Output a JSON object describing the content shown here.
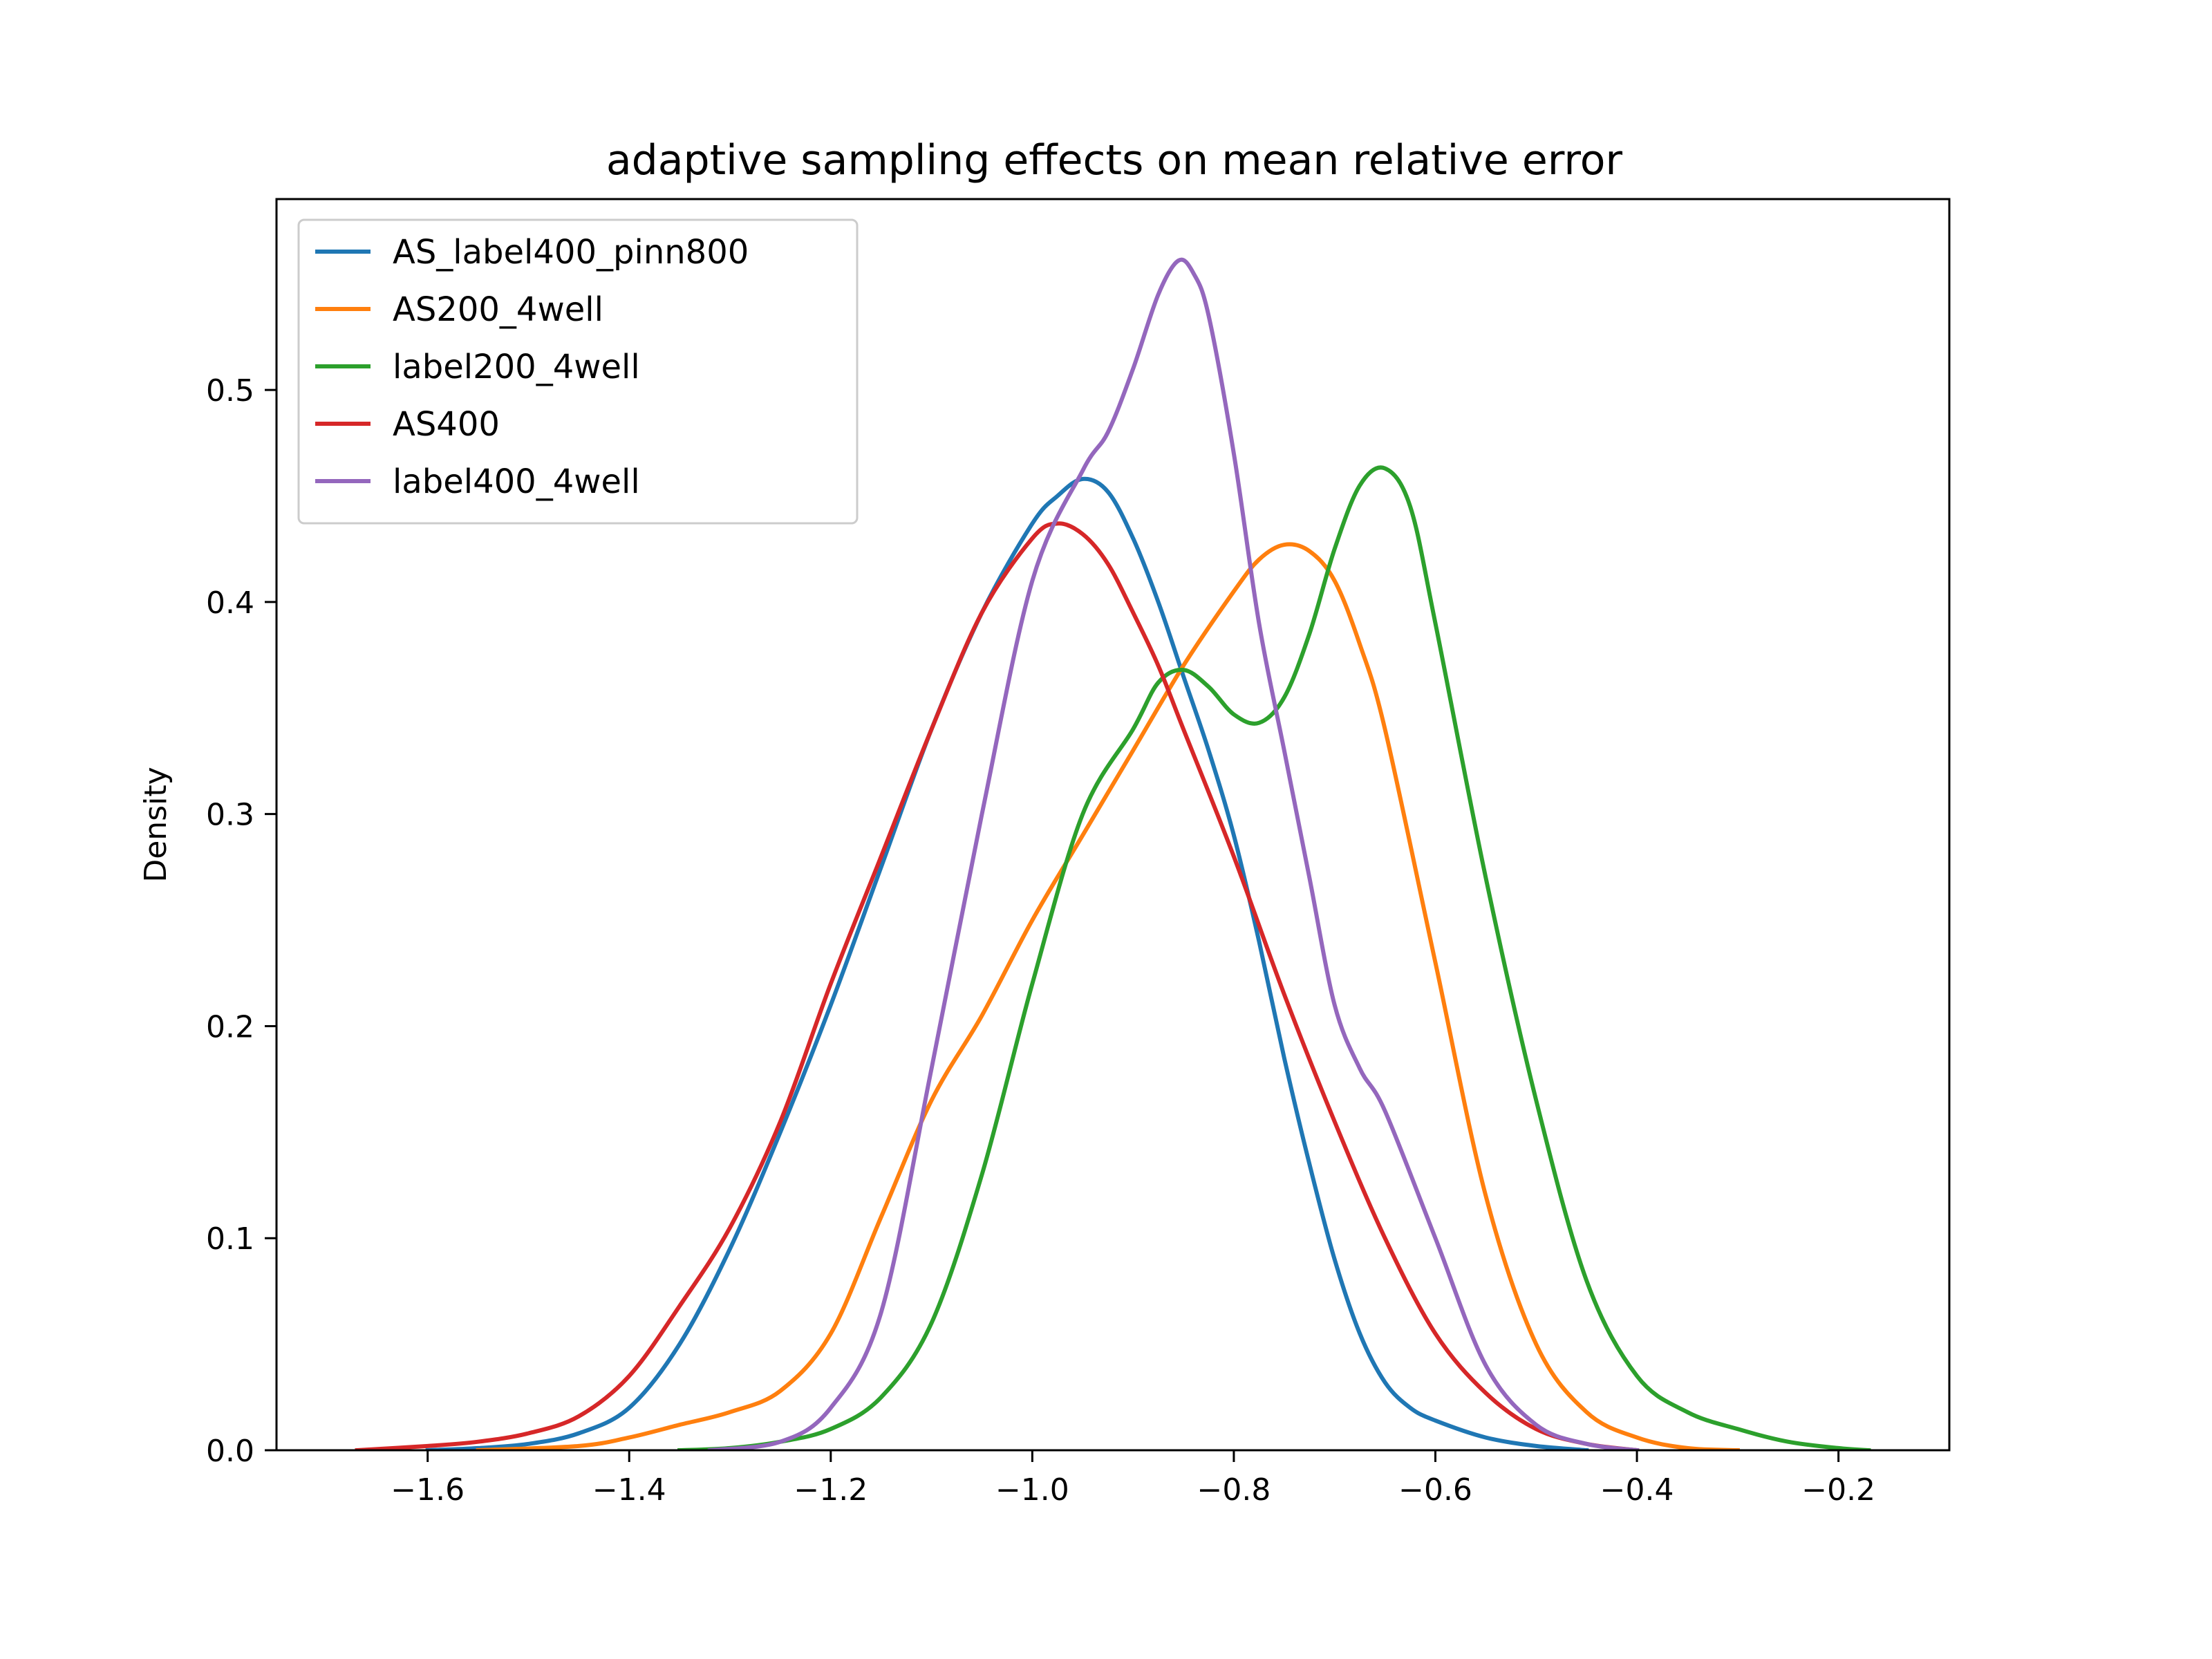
{
  "chart_data": {
    "type": "line",
    "title": "adaptive sampling effects on mean relative error",
    "xlabel": "",
    "ylabel": "Density",
    "xlim": [
      -1.75,
      -0.09
    ],
    "ylim": [
      0,
      0.59
    ],
    "x_ticks": [
      -1.6,
      -1.4,
      -1.2,
      -1.0,
      -0.8,
      -0.6,
      -0.4,
      -0.2
    ],
    "x_tick_labels": [
      "−1.6",
      "−1.4",
      "−1.2",
      "−1.0",
      "−0.8",
      "−0.6",
      "−0.4",
      "−0.2"
    ],
    "y_ticks": [
      0.0,
      0.1,
      0.2,
      0.3,
      0.4,
      0.5
    ],
    "y_tick_labels": [
      "0.0",
      "0.1",
      "0.2",
      "0.3",
      "0.4",
      "0.5"
    ],
    "grid": false,
    "legend_position": "upper-left",
    "series": [
      {
        "name": "AS_label400_pinn800",
        "color": "#1f77b4",
        "points": [
          [
            -1.6,
            0.0
          ],
          [
            -1.55,
            0.001
          ],
          [
            -1.5,
            0.003
          ],
          [
            -1.45,
            0.008
          ],
          [
            -1.4,
            0.02
          ],
          [
            -1.35,
            0.05
          ],
          [
            -1.3,
            0.095
          ],
          [
            -1.25,
            0.15
          ],
          [
            -1.2,
            0.21
          ],
          [
            -1.15,
            0.275
          ],
          [
            -1.1,
            0.34
          ],
          [
            -1.05,
            0.395
          ],
          [
            -1.0,
            0.437
          ],
          [
            -0.975,
            0.45
          ],
          [
            -0.95,
            0.458
          ],
          [
            -0.925,
            0.452
          ],
          [
            -0.9,
            0.43
          ],
          [
            -0.875,
            0.4
          ],
          [
            -0.85,
            0.365
          ],
          [
            -0.825,
            0.33
          ],
          [
            -0.8,
            0.29
          ],
          [
            -0.775,
            0.24
          ],
          [
            -0.75,
            0.185
          ],
          [
            -0.725,
            0.135
          ],
          [
            -0.7,
            0.09
          ],
          [
            -0.675,
            0.055
          ],
          [
            -0.65,
            0.032
          ],
          [
            -0.625,
            0.02
          ],
          [
            -0.6,
            0.014
          ],
          [
            -0.55,
            0.006
          ],
          [
            -0.5,
            0.002
          ],
          [
            -0.45,
            0.0
          ]
        ]
      },
      {
        "name": "AS200_4well",
        "color": "#ff7f0e",
        "points": [
          [
            -1.55,
            0.0
          ],
          [
            -1.45,
            0.002
          ],
          [
            -1.4,
            0.006
          ],
          [
            -1.35,
            0.012
          ],
          [
            -1.3,
            0.018
          ],
          [
            -1.25,
            0.028
          ],
          [
            -1.2,
            0.055
          ],
          [
            -1.15,
            0.11
          ],
          [
            -1.1,
            0.165
          ],
          [
            -1.05,
            0.205
          ],
          [
            -1.0,
            0.25
          ],
          [
            -0.95,
            0.29
          ],
          [
            -0.9,
            0.33
          ],
          [
            -0.85,
            0.37
          ],
          [
            -0.8,
            0.405
          ],
          [
            -0.775,
            0.42
          ],
          [
            -0.75,
            0.427
          ],
          [
            -0.725,
            0.424
          ],
          [
            -0.7,
            0.41
          ],
          [
            -0.675,
            0.38
          ],
          [
            -0.65,
            0.34
          ],
          [
            -0.6,
            0.23
          ],
          [
            -0.55,
            0.12
          ],
          [
            -0.5,
            0.05
          ],
          [
            -0.45,
            0.018
          ],
          [
            -0.4,
            0.006
          ],
          [
            -0.35,
            0.001
          ],
          [
            -0.3,
            0.0
          ]
        ]
      },
      {
        "name": "label200_4well",
        "color": "#2ca02c",
        "points": [
          [
            -1.35,
            0.0
          ],
          [
            -1.3,
            0.001
          ],
          [
            -1.25,
            0.004
          ],
          [
            -1.2,
            0.01
          ],
          [
            -1.15,
            0.025
          ],
          [
            -1.1,
            0.06
          ],
          [
            -1.05,
            0.13
          ],
          [
            -1.0,
            0.22
          ],
          [
            -0.95,
            0.3
          ],
          [
            -0.9,
            0.34
          ],
          [
            -0.875,
            0.362
          ],
          [
            -0.85,
            0.368
          ],
          [
            -0.825,
            0.36
          ],
          [
            -0.8,
            0.347
          ],
          [
            -0.775,
            0.343
          ],
          [
            -0.75,
            0.355
          ],
          [
            -0.725,
            0.385
          ],
          [
            -0.7,
            0.425
          ],
          [
            -0.675,
            0.455
          ],
          [
            -0.65,
            0.463
          ],
          [
            -0.625,
            0.445
          ],
          [
            -0.6,
            0.39
          ],
          [
            -0.55,
            0.27
          ],
          [
            -0.5,
            0.165
          ],
          [
            -0.45,
            0.08
          ],
          [
            -0.4,
            0.035
          ],
          [
            -0.35,
            0.018
          ],
          [
            -0.3,
            0.01
          ],
          [
            -0.25,
            0.004
          ],
          [
            -0.2,
            0.001
          ],
          [
            -0.17,
            0.0
          ]
        ]
      },
      {
        "name": "AS400",
        "color": "#d62728",
        "points": [
          [
            -1.67,
            0.0
          ],
          [
            -1.6,
            0.002
          ],
          [
            -1.55,
            0.004
          ],
          [
            -1.5,
            0.008
          ],
          [
            -1.45,
            0.016
          ],
          [
            -1.4,
            0.035
          ],
          [
            -1.35,
            0.068
          ],
          [
            -1.3,
            0.105
          ],
          [
            -1.25,
            0.155
          ],
          [
            -1.2,
            0.22
          ],
          [
            -1.15,
            0.28
          ],
          [
            -1.1,
            0.34
          ],
          [
            -1.05,
            0.395
          ],
          [
            -1.0,
            0.43
          ],
          [
            -0.975,
            0.437
          ],
          [
            -0.95,
            0.432
          ],
          [
            -0.925,
            0.418
          ],
          [
            -0.9,
            0.395
          ],
          [
            -0.875,
            0.37
          ],
          [
            -0.85,
            0.34
          ],
          [
            -0.8,
            0.28
          ],
          [
            -0.75,
            0.215
          ],
          [
            -0.7,
            0.155
          ],
          [
            -0.65,
            0.1
          ],
          [
            -0.6,
            0.055
          ],
          [
            -0.55,
            0.027
          ],
          [
            -0.5,
            0.01
          ],
          [
            -0.45,
            0.003
          ],
          [
            -0.4,
            0.0
          ]
        ]
      },
      {
        "name": "label400_4well",
        "color": "#9467bd",
        "points": [
          [
            -1.32,
            0.0
          ],
          [
            -1.25,
            0.004
          ],
          [
            -1.2,
            0.02
          ],
          [
            -1.15,
            0.065
          ],
          [
            -1.1,
            0.18
          ],
          [
            -1.05,
            0.3
          ],
          [
            -1.0,
            0.41
          ],
          [
            -0.95,
            0.462
          ],
          [
            -0.925,
            0.48
          ],
          [
            -0.9,
            0.51
          ],
          [
            -0.875,
            0.545
          ],
          [
            -0.855,
            0.561
          ],
          [
            -0.84,
            0.555
          ],
          [
            -0.825,
            0.535
          ],
          [
            -0.8,
            0.47
          ],
          [
            -0.775,
            0.39
          ],
          [
            -0.75,
            0.33
          ],
          [
            -0.725,
            0.27
          ],
          [
            -0.7,
            0.21
          ],
          [
            -0.675,
            0.18
          ],
          [
            -0.65,
            0.16
          ],
          [
            -0.6,
            0.1
          ],
          [
            -0.55,
            0.04
          ],
          [
            -0.5,
            0.012
          ],
          [
            -0.45,
            0.003
          ],
          [
            -0.4,
            0.0
          ]
        ]
      }
    ]
  }
}
